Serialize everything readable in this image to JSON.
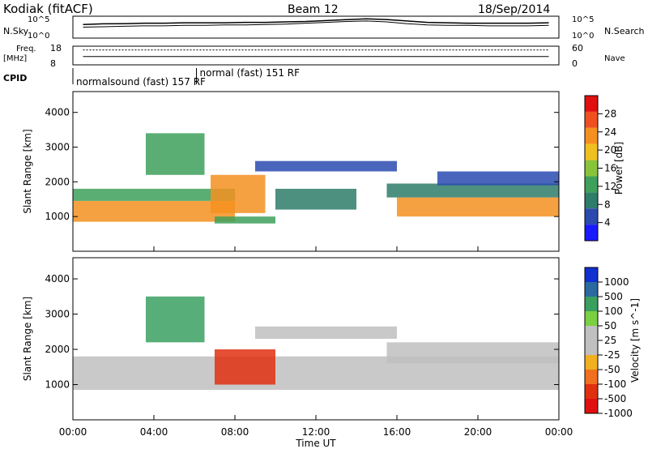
{
  "header": {
    "title_left": "Kodiak (fitACF)",
    "title_center": "Beam 12",
    "title_right": "18/Sep/2014"
  },
  "chart_data": [
    {
      "type": "line",
      "panel": "noise",
      "left_label": "N.Sky",
      "right_label": "N.Search",
      "left_ticks": [
        "10^5",
        "10^0"
      ],
      "right_ticks": [
        "10^5",
        "10^0"
      ],
      "series": [
        {
          "values": [
            0.62,
            0.65,
            0.66,
            0.68,
            0.68,
            0.7,
            0.7,
            0.7,
            0.72,
            0.72,
            0.74,
            0.76,
            0.8,
            0.84,
            0.88,
            0.85,
            0.78,
            0.72,
            0.7,
            0.68,
            0.68,
            0.68,
            0.68,
            0.7
          ]
        },
        {
          "values": [
            0.5,
            0.52,
            0.54,
            0.56,
            0.56,
            0.58,
            0.58,
            0.6,
            0.6,
            0.62,
            0.64,
            0.68,
            0.72,
            0.76,
            0.78,
            0.74,
            0.66,
            0.6,
            0.58,
            0.58,
            0.56,
            0.56,
            0.56,
            0.58
          ]
        }
      ]
    },
    {
      "type": "line",
      "panel": "frequency",
      "left_label": "Freq.",
      "left_unit": "[MHz]",
      "right_label": "Nave",
      "left_ticks": [
        "18",
        "8"
      ],
      "right_ticks": [
        "60",
        "0"
      ],
      "series": [
        {
          "values": [
            0.45,
            0.45,
            0.45,
            0.45,
            0.45,
            0.45,
            0.45,
            0.45,
            0.45,
            0.45,
            0.45,
            0.45,
            0.45,
            0.45,
            0.45,
            0.45,
            0.45,
            0.45,
            0.45,
            0.45,
            0.45,
            0.45,
            0.45,
            0.45
          ]
        },
        {
          "values": [
            0.8,
            0.8,
            0.8,
            0.8,
            0.8,
            0.8,
            0.8,
            0.8,
            0.8,
            0.8,
            0.8,
            0.8,
            0.8,
            0.8,
            0.8,
            0.8,
            0.8,
            0.8,
            0.8,
            0.8,
            0.8,
            0.8,
            0.8,
            0.8
          ]
        }
      ]
    },
    {
      "type": "table",
      "panel": "cpid",
      "label": "CPID",
      "segments": [
        {
          "start": 0,
          "end": 6.1,
          "text": "normalsound (fast) 157 RF"
        },
        {
          "start": 6.1,
          "end": 24,
          "text": "normal (fast) 151 RF"
        }
      ]
    },
    {
      "type": "heatmap",
      "panel": "power",
      "ylabel": "Slant Range [km]",
      "yticks": [
        1000,
        2000,
        3000,
        4000
      ],
      "ylim": [
        0,
        4600
      ],
      "colorbar_label": "Power [dB]",
      "colorbar_ticks": [
        4,
        8,
        12,
        16,
        20,
        24,
        28
      ],
      "colorbar_range": [
        0,
        32
      ],
      "bands": [
        {
          "x0": 0,
          "x1": 8,
          "r0": 850,
          "r1": 1450,
          "value": 24
        },
        {
          "x0": 0,
          "x1": 8,
          "r0": 1450,
          "r1": 1800,
          "value": 12
        },
        {
          "x0": 3.6,
          "x1": 6.5,
          "r0": 2200,
          "r1": 3400,
          "value": 14
        },
        {
          "x0": 6.8,
          "x1": 9.5,
          "r0": 1100,
          "r1": 2200,
          "value": 22
        },
        {
          "x0": 7,
          "x1": 10,
          "r0": 800,
          "r1": 1000,
          "value": 12
        },
        {
          "x0": 9,
          "x1": 16,
          "r0": 2300,
          "r1": 2600,
          "value": 6
        },
        {
          "x0": 16,
          "x1": 24,
          "r0": 1000,
          "r1": 1550,
          "value": 24
        },
        {
          "x0": 15.5,
          "x1": 24,
          "r0": 1550,
          "r1": 1950,
          "value": 10
        },
        {
          "x0": 10,
          "x1": 14,
          "r0": 1200,
          "r1": 1800,
          "value": 8
        },
        {
          "x0": 18,
          "x1": 24,
          "r0": 1900,
          "r1": 2300,
          "value": 6
        }
      ]
    },
    {
      "type": "heatmap",
      "panel": "velocity",
      "ylabel": "Slant Range [km]",
      "yticks": [
        1000,
        2000,
        3000,
        4000
      ],
      "ylim": [
        0,
        4600
      ],
      "colorbar_label": "Velocity [m s^-1]",
      "colorbar_ticks": [
        1000,
        500,
        100,
        50,
        25,
        -25,
        -50,
        -100,
        -500,
        -1000
      ],
      "bands": [
        {
          "x0": 0,
          "x1": 24,
          "r0": 850,
          "r1": 1800,
          "value": 0
        },
        {
          "x0": 9,
          "x1": 16,
          "r0": 2300,
          "r1": 2650,
          "value": 0
        },
        {
          "x0": 3.6,
          "x1": 6.5,
          "r0": 2200,
          "r1": 3500,
          "value": 100
        },
        {
          "x0": 7,
          "x1": 10,
          "r0": 1000,
          "r1": 2000,
          "value": -150
        },
        {
          "x0": 15.5,
          "x1": 24,
          "r0": 1600,
          "r1": 2200,
          "value": 0
        }
      ]
    }
  ],
  "xaxis": {
    "xlabel": "Time UT",
    "xticks": [
      "00:00",
      "04:00",
      "08:00",
      "12:00",
      "16:00",
      "20:00",
      "00:00"
    ],
    "xlim": [
      0,
      24
    ]
  },
  "colors": {
    "power_scale": [
      "#1a1aff",
      "#2a4ab0",
      "#2e7d6a",
      "#3ea05a",
      "#88c43a",
      "#f0c020",
      "#f59020",
      "#f05020",
      "#e01010"
    ],
    "velocity_scale": [
      "#1030d0",
      "#2a6aa0",
      "#3aa060",
      "#7ad040",
      "#c0c0c0",
      "#c0c0c0",
      "#f0b020",
      "#f07020",
      "#e03010",
      "#e01010"
    ],
    "velocity_ground": "#c0c0c0"
  }
}
